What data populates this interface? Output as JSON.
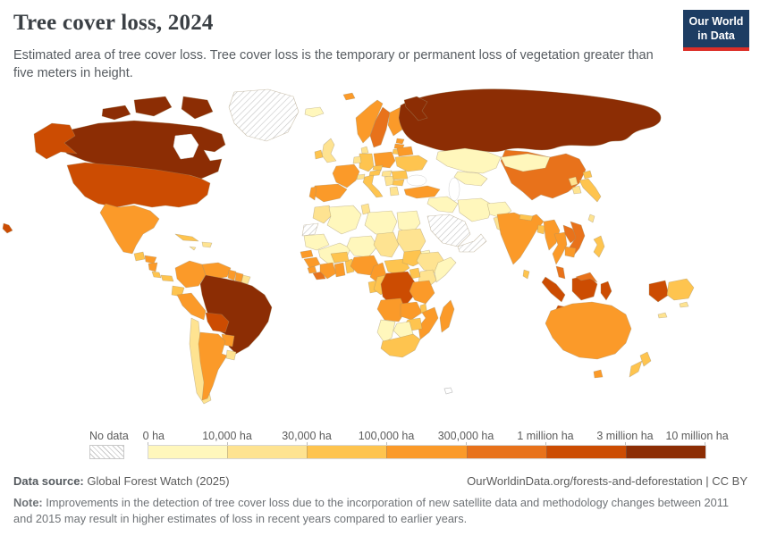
{
  "header": {
    "title": "Tree cover loss, 2024",
    "subtitle": "Estimated area of tree cover loss. Tree cover loss is the temporary or permanent loss of vegetation greater than five meters in height.",
    "logo": {
      "line1": "Our World",
      "line2": "in Data",
      "bg_color": "#1d3d63",
      "accent_color": "#dc2e27"
    }
  },
  "legend": {
    "no_data_label": "No data",
    "tick_labels": [
      "0 ha",
      "10,000 ha",
      "30,000 ha",
      "100,000 ha",
      "300,000 ha",
      "1 million ha",
      "3 million ha",
      "10 million ha"
    ],
    "bin_colors": [
      "#fff7bc",
      "#fee391",
      "#fec44f",
      "#fb9a29",
      "#e8721b",
      "#cc4c02",
      "#8c2d04"
    ]
  },
  "footer": {
    "datasource_label": "Data source:",
    "datasource_value": " Global Forest Watch (2025)",
    "attribution": "OurWorldinData.org/forests-and-deforestation | CC BY",
    "note_label": "Note:",
    "note_text": " Improvements in the detection of tree cover loss due to the incorporation of new satellite data and methodology changes between 2011 and 2015 may result in higher estimates of loss in recent years compared to earlier years."
  },
  "chart_data": {
    "type": "choropleth-map",
    "title": "Tree cover loss, 2024",
    "unit": "hectares of tree cover loss",
    "projection": "world map, white ocean",
    "bins": [
      {
        "key": "c1",
        "range": "0 – 10,000 ha",
        "color": "#fff7bc"
      },
      {
        "key": "c2",
        "range": "10,000 – 30,000 ha",
        "color": "#fee391"
      },
      {
        "key": "c3",
        "range": "30,000 – 100,000 ha",
        "color": "#fec44f"
      },
      {
        "key": "c4",
        "range": "100,000 – 300,000 ha",
        "color": "#fb9a29"
      },
      {
        "key": "c5",
        "range": "300,000 ha – 1 million ha",
        "color": "#e8721b"
      },
      {
        "key": "c6",
        "range": "1 – 3 million ha",
        "color": "#cc4c02"
      },
      {
        "key": "c7",
        "range": "3 – 10 million ha",
        "color": "#8c2d04"
      }
    ],
    "no_data_style": "diagonal gray hatching",
    "palette": {
      "c1": "#fff7bc",
      "c2": "#fee391",
      "c3": "#fec44f",
      "c4": "#fb9a29",
      "c5": "#e8721b",
      "c6": "#cc4c02",
      "c7": "#8c2d04"
    },
    "regions": {
      "greenland": "no-data",
      "westernsahara": "no-data",
      "saudiarabia": "no-data",
      "yemenoman": "no-data",
      "canada": "c7",
      "usa": "c6",
      "mexico": "c4",
      "guatemala": "c3",
      "honduras": "c4",
      "nicaragua": "c4",
      "costarica": "c3",
      "panama": "c3",
      "cuba": "c3",
      "hispaniola": "c2",
      "jamaica": "c2",
      "colombia": "c4",
      "venezuela": "c4",
      "guyana": "c4",
      "suriname": "c4",
      "frguiana": "c2",
      "ecuador": "c3",
      "peru": "c4",
      "brazil": "c7",
      "bolivia": "c6",
      "paraguay": "c4",
      "chile": "c2",
      "argentina": "c4",
      "uruguay": "c2",
      "iceland": "c1",
      "norway": "c4",
      "sweden": "c5",
      "finland": "c4",
      "denmark": "c2",
      "uk": "c2",
      "ireland": "c3",
      "estonia": "c4",
      "latvia": "c4",
      "lithuania": "c3",
      "poland": "c4",
      "germany": "c3",
      "france": "c4",
      "spain": "c4",
      "portugal": "c4",
      "benelux": "c2",
      "switzerland": "c2",
      "italy": "c3",
      "austria": "c3",
      "czech": "c3",
      "hungary": "c2",
      "balkans": "c2",
      "greece": "c2",
      "bulgaria": "c3",
      "romania": "c3",
      "ukraine": "c3",
      "belarus": "c4",
      "turkey": "c4",
      "russia": "c7",
      "kazakhstan": "c1",
      "centralasia": "c1",
      "mongolia": "c1",
      "syriairaq": "c1",
      "iran": "c1",
      "afghanistan": "c1",
      "pakistan": "c2",
      "china": "c5",
      "nepal": "c3",
      "bangladesh": "c3",
      "india": "c4",
      "srilanka": "c3",
      "myanmar": "c4",
      "thailand": "c4",
      "laos": "c5",
      "vietnam": "c5",
      "cambodia": "c4",
      "malaysia": "c5",
      "indonesia": "c6",
      "philippines": "c3",
      "taiwan": "c2",
      "japan": "c3",
      "northkorea": "c2",
      "southkorea": "c2",
      "png": "c3",
      "australia": "c4",
      "newzealand": "c3",
      "newcaledonia": "c2",
      "solomons": "c2",
      "hawaii": "c6",
      "svalbard": "c4",
      "morocco": "c2",
      "algeria": "c1",
      "tunisia": "c2",
      "libya": "c1",
      "egypt": "c1",
      "mauritania": "c1",
      "mali": "c1",
      "niger": "c1",
      "chad": "c2",
      "sudan": "c2",
      "eritrea": "c1",
      "senegal": "c4",
      "guinea": "c4",
      "sierraleone": "c4",
      "liberia": "c5",
      "ivorycoast": "c4",
      "ghana": "c4",
      "togobenin": "c3",
      "burkina": "c3",
      "nigeria": "c4",
      "cameroon": "c4",
      "car": "c3",
      "southsudan": "c3",
      "ethiopia": "c2",
      "somalia": "c1",
      "kenya": "c2",
      "uganda": "c3",
      "gabon": "c3",
      "congo": "c3",
      "drc": "c6",
      "tanzania": "c4",
      "angola": "c4",
      "zambia": "c4",
      "malawi": "c3",
      "mozambique": "c4",
      "zimbabwe": "c3",
      "botswana": "c1",
      "namibia": "c1",
      "southafrica": "c3",
      "madagascar": "c4"
    }
  }
}
